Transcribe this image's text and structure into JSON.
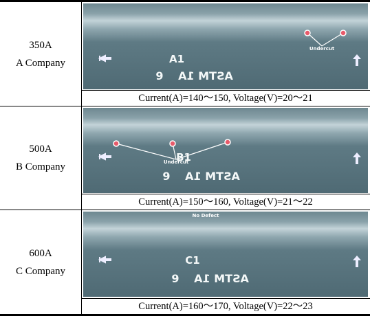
{
  "rows": [
    {
      "label": [
        "350A",
        "A Company"
      ],
      "image": {
        "id": "A1",
        "annotation": "Undercut",
        "penetrameter_number": "9",
        "penetrameter_text": "ASTM 1A"
      },
      "caption": "Current(A)=140～150, Voltage(V)=20～21"
    },
    {
      "label": [
        "500A",
        "B Company"
      ],
      "image": {
        "id": "B1",
        "annotation": "Undercut",
        "penetrameter_number": "9",
        "penetrameter_text": "ASTM 1A"
      },
      "caption": "Current(A)=150～160, Voltage(V)=21～22"
    },
    {
      "label": [
        "600A",
        "C Company"
      ],
      "image": {
        "id": "C1",
        "annotation": "No Defect",
        "penetrameter_number": "9",
        "penetrameter_text": "ASTM 1A"
      },
      "caption": "Current(A)=160～170, Voltage(V)=22～23"
    }
  ]
}
